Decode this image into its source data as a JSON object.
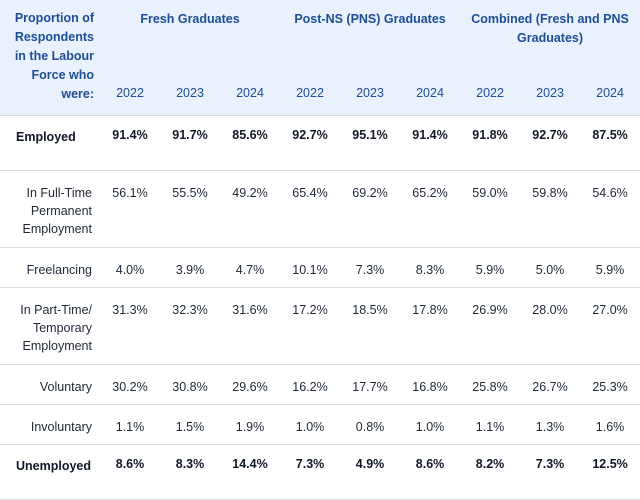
{
  "header": {
    "first_col": "Proportion of Respondents in the Labour Force who were:",
    "groups": [
      {
        "label": "Fresh Graduates"
      },
      {
        "label": "Post-NS (PNS) Graduates"
      },
      {
        "label": "Combined (Fresh and PNS Graduates)"
      }
    ],
    "years": [
      "2022",
      "2023",
      "2024",
      "2022",
      "2023",
      "2024",
      "2022",
      "2023",
      "2024"
    ]
  },
  "rows": [
    {
      "label": "Employed",
      "values": [
        "91.4%",
        "91.7%",
        "85.6%",
        "92.7%",
        "95.1%",
        "91.4%",
        "91.8%",
        "92.7%",
        "87.5%"
      ]
    },
    {
      "label": "In Full-Time Permanent Employment",
      "values": [
        "56.1%",
        "55.5%",
        "49.2%",
        "65.4%",
        "69.2%",
        "65.2%",
        "59.0%",
        "59.8%",
        "54.6%"
      ]
    },
    {
      "label": "Freelancing",
      "values": [
        "4.0%",
        "3.9%",
        "4.7%",
        "10.1%",
        "7.3%",
        "8.3%",
        "5.9%",
        "5.0%",
        "5.9%"
      ]
    },
    {
      "label": "In Part-Time/ Temporary Employment",
      "values": [
        "31.3%",
        "32.3%",
        "31.6%",
        "17.2%",
        "18.5%",
        "17.8%",
        "26.9%",
        "28.0%",
        "27.0%"
      ]
    },
    {
      "label": "Voluntary",
      "values": [
        "30.2%",
        "30.8%",
        "29.6%",
        "16.2%",
        "17.7%",
        "16.8%",
        "25.8%",
        "26.7%",
        "25.3%"
      ]
    },
    {
      "label": "Involuntary",
      "values": [
        "1.1%",
        "1.5%",
        "1.9%",
        "1.0%",
        "0.8%",
        "1.0%",
        "1.1%",
        "1.3%",
        "1.6%"
      ]
    },
    {
      "label": "Unemployed",
      "values": [
        "8.6%",
        "8.3%",
        "14.4%",
        "7.3%",
        "4.9%",
        "8.6%",
        "8.2%",
        "7.3%",
        "12.5%"
      ]
    }
  ]
}
